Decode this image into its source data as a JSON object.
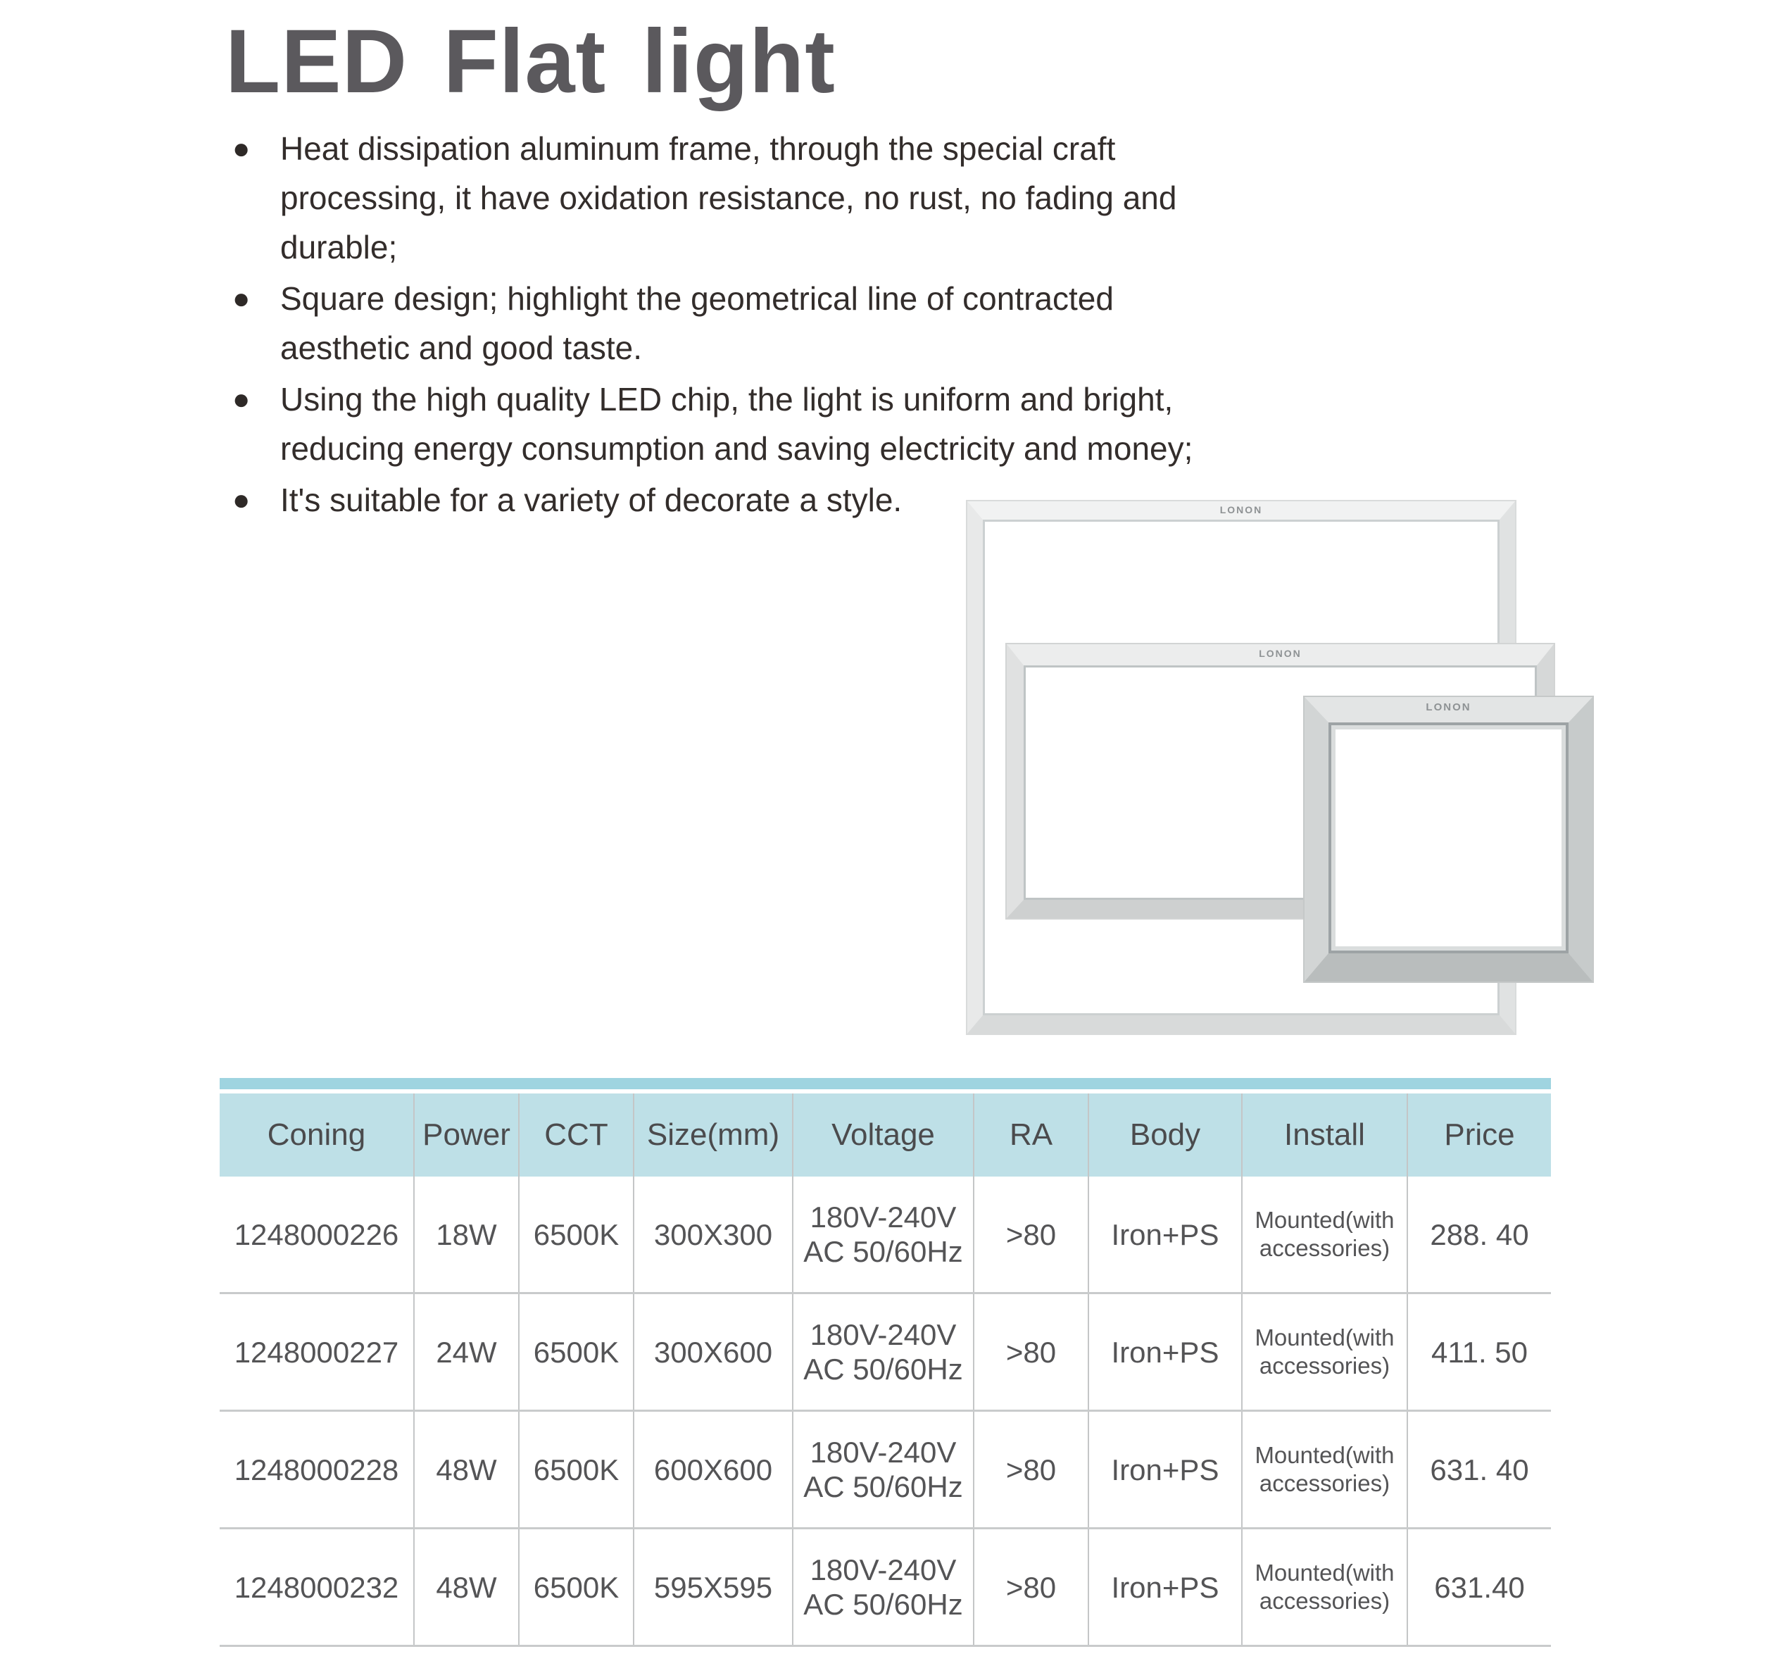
{
  "page": {
    "title": "LED Flat light"
  },
  "features": [
    {
      "bullet": "●",
      "lines": [
        "Heat dissipation aluminum frame, through the special craft",
        "processing, it have oxidation resistance, no rust, no fading and",
        "durable;"
      ]
    },
    {
      "bullet": "●",
      "lines": [
        "Square design; highlight the geometrical line of contracted",
        "aesthetic and good taste."
      ]
    },
    {
      "bullet": "●",
      "lines": [
        "Using the high quality LED chip, the light is uniform and bright,",
        "reducing energy consumption and saving electricity and money;"
      ]
    },
    {
      "bullet": "●",
      "lines": [
        "It's suitable for a variety of decorate a style."
      ]
    }
  ],
  "product_images": {
    "brand_logo": "LONON",
    "panels": [
      "large square panel",
      "wide rectangular panel",
      "small square panel"
    ]
  },
  "colors": {
    "accent_bar": "#9fd4e0",
    "table_header_bg": "#bee0e7",
    "title_text": "#5b595d",
    "body_text": "#332d2b",
    "table_text": "#545456"
  },
  "spec_table": {
    "headers": [
      "Coning",
      "Power",
      "CCT",
      "Size(mm)",
      "Voltage",
      "RA",
      "Body",
      "Install",
      "Price"
    ],
    "rows": [
      {
        "coning": "1248000226",
        "power": "18W",
        "cct": "6500K",
        "size": "300X300",
        "voltage": [
          "180V-240V",
          "AC 50/60Hz"
        ],
        "ra": ">80",
        "body": "Iron+PS",
        "install": [
          "Mounted(with",
          "accessories)"
        ],
        "price": "288. 40"
      },
      {
        "coning": "1248000227",
        "power": "24W",
        "cct": "6500K",
        "size": "300X600",
        "voltage": [
          "180V-240V",
          "AC 50/60Hz"
        ],
        "ra": ">80",
        "body": "Iron+PS",
        "install": [
          "Mounted(with",
          "accessories)"
        ],
        "price": "411. 50"
      },
      {
        "coning": "1248000228",
        "power": "48W",
        "cct": "6500K",
        "size": "600X600",
        "voltage": [
          "180V-240V",
          "AC 50/60Hz"
        ],
        "ra": ">80",
        "body": "Iron+PS",
        "install": [
          "Mounted(with",
          "accessories)"
        ],
        "price": "631. 40"
      },
      {
        "coning": "1248000232",
        "power": "48W",
        "cct": "6500K",
        "size": "595X595",
        "voltage": [
          "180V-240V",
          "AC 50/60Hz"
        ],
        "ra": ">80",
        "body": "Iron+PS",
        "install": [
          "Mounted(with",
          "accessories)"
        ],
        "price": "631.40"
      }
    ]
  }
}
